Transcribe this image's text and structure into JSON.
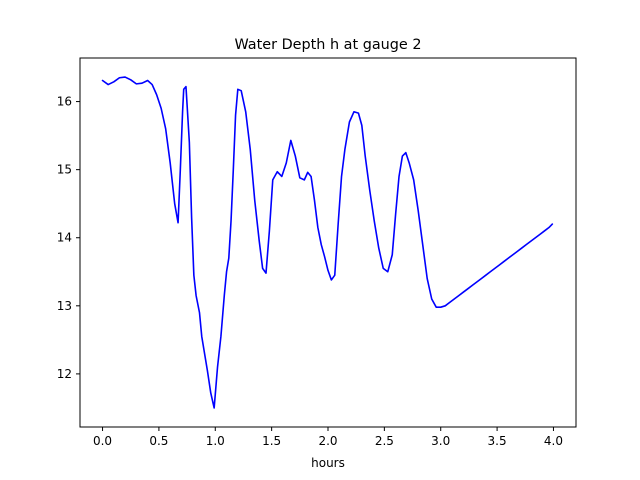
{
  "chart_data": {
    "type": "line",
    "title": "Water Depth h at gauge 2",
    "xlabel": "hours",
    "ylabel": "",
    "xlim": [
      -0.2,
      4.2
    ],
    "ylim": [
      11.22,
      16.64
    ],
    "grid": false,
    "xticks": [
      0.0,
      0.5,
      1.0,
      1.5,
      2.0,
      2.5,
      3.0,
      3.5,
      4.0
    ],
    "xtick_labels": [
      "0.0",
      "0.5",
      "1.0",
      "1.5",
      "2.0",
      "2.5",
      "3.0",
      "3.5",
      "4.0"
    ],
    "yticks": [
      12,
      13,
      14,
      15,
      16
    ],
    "ytick_labels": [
      "12",
      "13",
      "14",
      "15",
      "16"
    ],
    "series": [
      {
        "name": "",
        "color": "#0000ff",
        "x": [
          0.0,
          0.05,
          0.1,
          0.15,
          0.2,
          0.25,
          0.3,
          0.35,
          0.4,
          0.44,
          0.48,
          0.52,
          0.56,
          0.6,
          0.64,
          0.67,
          0.69,
          0.71,
          0.72,
          0.74,
          0.75,
          0.77,
          0.79,
          0.81,
          0.83,
          0.86,
          0.88,
          0.9,
          0.93,
          0.96,
          0.99,
          1.02,
          1.05,
          1.08,
          1.1,
          1.12,
          1.14,
          1.16,
          1.18,
          1.2,
          1.23,
          1.27,
          1.31,
          1.35,
          1.39,
          1.42,
          1.45,
          1.48,
          1.51,
          1.55,
          1.59,
          1.63,
          1.67,
          1.71,
          1.75,
          1.79,
          1.82,
          1.85,
          1.88,
          1.91,
          1.94,
          1.97,
          2.0,
          2.03,
          2.06,
          2.09,
          2.12,
          2.15,
          2.19,
          2.23,
          2.27,
          2.3,
          2.33,
          2.37,
          2.41,
          2.45,
          2.49,
          2.53,
          2.57,
          2.6,
          2.63,
          2.66,
          2.69,
          2.72,
          2.76,
          2.8,
          2.84,
          2.88,
          2.92,
          2.96,
          3.0,
          3.04,
          3.08,
          3.12,
          3.16,
          3.2,
          3.24,
          3.28,
          3.32,
          3.36,
          3.4,
          3.44,
          3.48,
          3.52,
          3.56,
          3.6,
          3.64,
          3.68,
          3.72,
          3.76,
          3.8,
          3.84,
          3.88,
          3.92,
          3.96,
          3.99
        ],
        "y": [
          16.31,
          16.25,
          16.29,
          16.35,
          16.36,
          16.32,
          16.26,
          16.27,
          16.31,
          16.25,
          16.1,
          15.9,
          15.6,
          15.1,
          14.5,
          14.22,
          15.0,
          15.85,
          16.18,
          16.22,
          15.95,
          15.4,
          14.3,
          13.45,
          13.15,
          12.9,
          12.55,
          12.35,
          12.05,
          11.72,
          11.5,
          12.1,
          12.55,
          13.15,
          13.5,
          13.7,
          14.25,
          15.0,
          15.8,
          16.18,
          16.16,
          15.85,
          15.3,
          14.55,
          13.95,
          13.55,
          13.48,
          14.1,
          14.85,
          14.97,
          14.9,
          15.1,
          15.43,
          15.2,
          14.88,
          14.85,
          14.96,
          14.9,
          14.55,
          14.15,
          13.9,
          13.72,
          13.52,
          13.38,
          13.45,
          14.2,
          14.9,
          15.3,
          15.7,
          15.85,
          15.83,
          15.65,
          15.2,
          14.7,
          14.25,
          13.85,
          13.55,
          13.5,
          13.75,
          14.35,
          14.9,
          15.2,
          15.25,
          15.1,
          14.85,
          14.4,
          13.9,
          13.4,
          13.1,
          12.98,
          12.98,
          13.0,
          13.05,
          13.1,
          13.15,
          13.2,
          13.25,
          13.3,
          13.35,
          13.4,
          13.45,
          13.5,
          13.55,
          13.6,
          13.65,
          13.7,
          13.75,
          13.8,
          13.85,
          13.9,
          13.95,
          14.0,
          14.05,
          14.1,
          14.15,
          14.2
        ]
      }
    ]
  }
}
